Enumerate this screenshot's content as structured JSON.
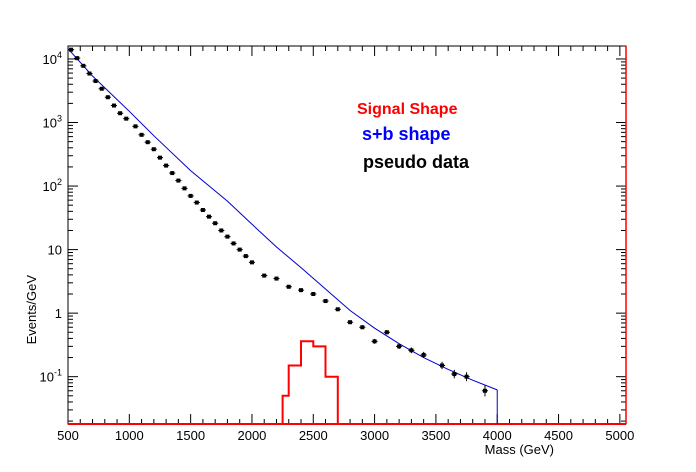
{
  "chart_data": {
    "type": "line",
    "xlabel": "Mass (GeV)",
    "ylabel": "Events/GeV",
    "xlim": [
      500,
      5050
    ],
    "ylim": [
      0.018,
      16000
    ],
    "yscale": "log",
    "x_ticks": [
      500,
      1000,
      1500,
      2000,
      2500,
      3000,
      3500,
      4000,
      4500,
      5000
    ],
    "x_tick_labels": [
      "500",
      "1000",
      "1500",
      "2000",
      "2500",
      "3000",
      "3500",
      "4000",
      "4500",
      "5000"
    ],
    "y_ticks": [
      0.1,
      1,
      10,
      100,
      1000,
      10000
    ],
    "y_tick_labels": [
      {
        "base": "10",
        "exp": "-1"
      },
      {
        "base": "1",
        "exp": ""
      },
      {
        "base": "10",
        "exp": ""
      },
      {
        "base": "10",
        "exp": "2"
      },
      {
        "base": "10",
        "exp": "3"
      },
      {
        "base": "10",
        "exp": "4"
      }
    ],
    "legend": [
      {
        "text": "Signal Shape",
        "color": "#ff0000"
      },
      {
        "text": "s+b shape",
        "color": "#0000ff"
      },
      {
        "text": "pseudo data",
        "color": "#000000"
      }
    ],
    "legend_position": "top-center-right",
    "series": [
      {
        "name": "s+b shape",
        "color": "#0000cc",
        "kind": "line",
        "points": [
          [
            500,
            14500
          ],
          [
            700,
            5400
          ],
          [
            1000,
            1500
          ],
          [
            1200,
            620
          ],
          [
            1500,
            175
          ],
          [
            1800,
            58
          ],
          [
            2000,
            25
          ],
          [
            2200,
            11
          ],
          [
            2400,
            5.2
          ],
          [
            2600,
            2.4
          ],
          [
            2800,
            1.1
          ],
          [
            3000,
            0.58
          ],
          [
            3200,
            0.33
          ],
          [
            3400,
            0.2
          ],
          [
            3600,
            0.13
          ],
          [
            3800,
            0.088
          ],
          [
            4000,
            0.062
          ]
        ],
        "cutoff": 4000
      },
      {
        "name": "pseudo data",
        "color": "#000000",
        "kind": "points",
        "bin_width": 50,
        "points": [
          [
            525,
            14000
          ],
          [
            575,
            10300
          ],
          [
            625,
            7800
          ],
          [
            675,
            5900
          ],
          [
            725,
            4500
          ],
          [
            775,
            3400
          ],
          [
            825,
            2500
          ],
          [
            875,
            1850
          ],
          [
            925,
            1400
          ],
          [
            975,
            1150
          ],
          [
            1050,
            870
          ],
          [
            1100,
            640
          ],
          [
            1150,
            490
          ],
          [
            1200,
            380
          ],
          [
            1250,
            280
          ],
          [
            1300,
            210
          ],
          [
            1350,
            160
          ],
          [
            1400,
            122
          ],
          [
            1450,
            92
          ],
          [
            1500,
            70
          ],
          [
            1550,
            55
          ],
          [
            1600,
            42
          ],
          [
            1650,
            33
          ],
          [
            1700,
            26
          ],
          [
            1750,
            20
          ],
          [
            1800,
            16
          ],
          [
            1850,
            12.5
          ],
          [
            1900,
            10
          ],
          [
            1950,
            7.9
          ],
          [
            2000,
            6.3
          ],
          [
            2100,
            3.9
          ],
          [
            2200,
            3.5
          ],
          [
            2300,
            2.6
          ],
          [
            2400,
            2.3
          ],
          [
            2500,
            2.0
          ],
          [
            2600,
            1.55
          ],
          [
            2700,
            1.15
          ],
          [
            2800,
            0.72
          ],
          [
            2900,
            0.6
          ],
          [
            3000,
            0.36
          ],
          [
            3100,
            0.5
          ],
          [
            3200,
            0.3
          ],
          [
            3300,
            0.26
          ],
          [
            3400,
            0.22
          ],
          [
            3550,
            0.15
          ],
          [
            3650,
            0.11
          ],
          [
            3750,
            0.1
          ],
          [
            3900,
            0.06
          ]
        ]
      },
      {
        "name": "Signal Shape",
        "color": "#ff0000",
        "kind": "histogram",
        "bins": [
          [
            2250,
            2300,
            0.05
          ],
          [
            2300,
            2400,
            0.15
          ],
          [
            2400,
            2500,
            0.36
          ],
          [
            2500,
            2600,
            0.3
          ],
          [
            2600,
            2700,
            0.1
          ]
        ]
      }
    ]
  }
}
